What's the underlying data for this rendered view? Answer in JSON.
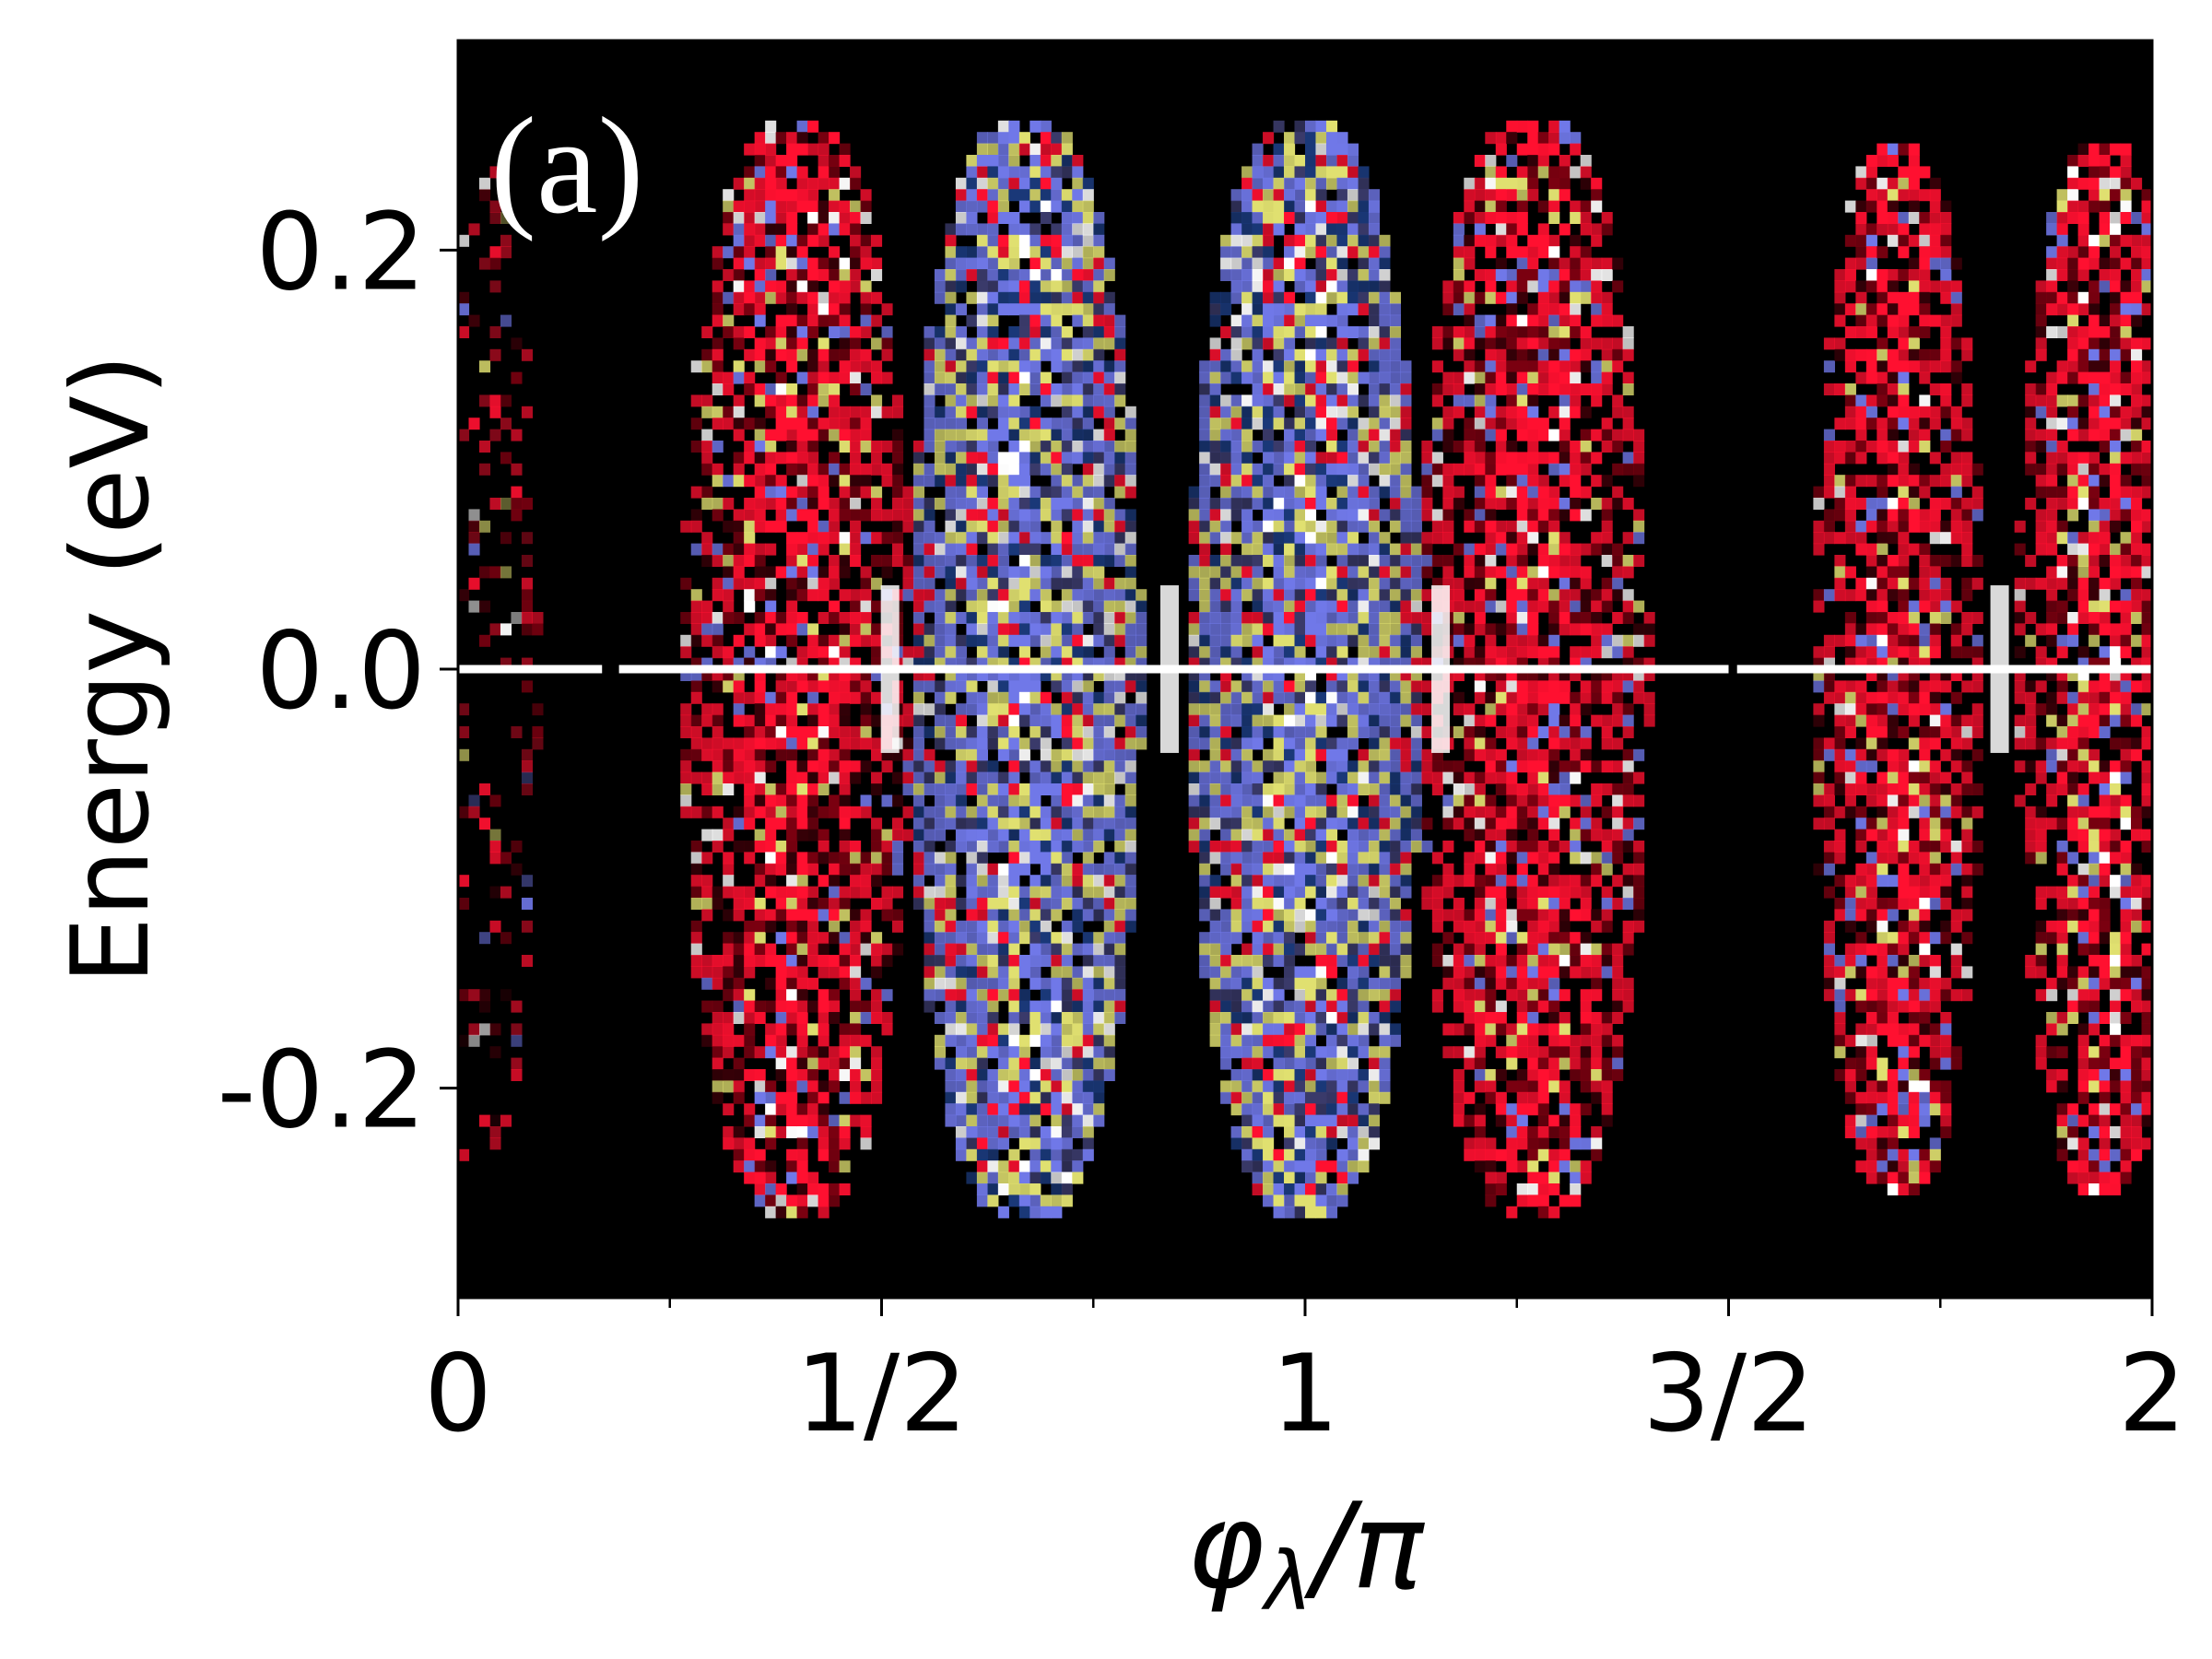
{
  "chart_data": {
    "type": "heatmap",
    "panel_label": "(a)",
    "xlabel_main": "φ",
    "xlabel_sub": "λ",
    "xlabel_suffix": "/π",
    "ylabel": "Energy (eV)",
    "xlim": [
      0,
      2
    ],
    "ylim": [
      -0.3,
      0.3
    ],
    "x_ticks": [
      {
        "value": 0,
        "label": "0"
      },
      {
        "value": 0.5,
        "label": "1/2"
      },
      {
        "value": 1,
        "label": "1"
      },
      {
        "value": 1.5,
        "label": "3/2"
      },
      {
        "value": 2,
        "label": "2"
      }
    ],
    "x_minor_ticks": [
      0.25,
      0.75,
      1.25,
      1.75
    ],
    "y_ticks": [
      {
        "value": -0.2,
        "label": "-0.2"
      },
      {
        "value": 0.0,
        "label": "0.0"
      },
      {
        "value": 0.2,
        "label": "0.2"
      }
    ],
    "grid": false,
    "background_color": "#000000",
    "colors": {
      "red": "#ff1030",
      "blue": "#7078e8",
      "yellow": "#e0e070",
      "white": "#ffffff",
      "navy": "#1a3878",
      "darkred": "#7a0010"
    },
    "zero_energy_states": [
      {
        "x_range": [
          0.0,
          0.17
        ],
        "energy": 0.0
      },
      {
        "x_range": [
          0.19,
          1.5
        ],
        "energy": 0.0
      },
      {
        "x_range": [
          1.51,
          2.0
        ],
        "energy": 0.0
      }
    ],
    "lobes": [
      {
        "x_center": 0.02,
        "half_width": 0.06,
        "energy_extent": 0.24,
        "dominant": "sparse-red"
      },
      {
        "x_center": 0.4,
        "half_width": 0.11,
        "energy_extent": 0.26,
        "dominant": "red"
      },
      {
        "x_center": 0.67,
        "half_width": 0.11,
        "energy_extent": 0.26,
        "dominant": "blue-yellow"
      },
      {
        "x_center": 1.0,
        "half_width": 0.11,
        "energy_extent": 0.26,
        "dominant": "blue-yellow"
      },
      {
        "x_center": 1.27,
        "half_width": 0.11,
        "energy_extent": 0.26,
        "dominant": "red"
      },
      {
        "x_center": 1.7,
        "half_width": 0.08,
        "energy_extent": 0.25,
        "dominant": "red"
      },
      {
        "x_center": 1.94,
        "half_width": 0.08,
        "energy_extent": 0.25,
        "dominant": "red"
      }
    ],
    "bright_gaps": [
      {
        "x": 0.51,
        "energy_extent": 0.04
      },
      {
        "x": 0.84,
        "energy_extent": 0.04
      },
      {
        "x": 1.16,
        "energy_extent": 0.04
      },
      {
        "x": 1.82,
        "energy_extent": 0.04
      }
    ]
  }
}
